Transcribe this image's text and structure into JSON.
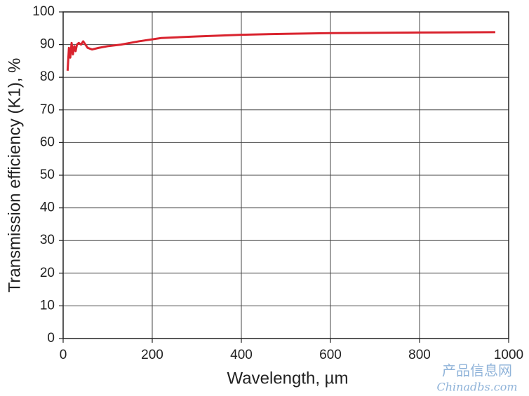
{
  "chart_data": {
    "type": "line",
    "x_label": "Wavelength, µm",
    "y_label": "Transmission efficiency (K1), %",
    "x": [
      10,
      13,
      16,
      19,
      22,
      25,
      28,
      31,
      35,
      40,
      45,
      55,
      65,
      80,
      100,
      130,
      170,
      220,
      300,
      400,
      500,
      600,
      800,
      970
    ],
    "series": [
      {
        "name": "K1",
        "color": "#d9232e",
        "values": [
          82,
          89,
          86,
          90.5,
          87,
          89.5,
          88,
          90,
          90.5,
          90,
          91,
          89,
          88.5,
          89,
          89.5,
          90,
          91,
          92,
          92.5,
          93,
          93.3,
          93.5,
          93.7,
          93.8
        ]
      }
    ],
    "xlim": [
      0,
      1000
    ],
    "xticks": [
      0,
      200,
      400,
      600,
      800,
      1000
    ],
    "ylim": [
      0,
      100
    ],
    "yticks": [
      0,
      10,
      20,
      30,
      40,
      50,
      60,
      70,
      80,
      90,
      100
    ],
    "grid": true,
    "watermark": [
      "产品信息网",
      "Chinadbs.com"
    ]
  }
}
